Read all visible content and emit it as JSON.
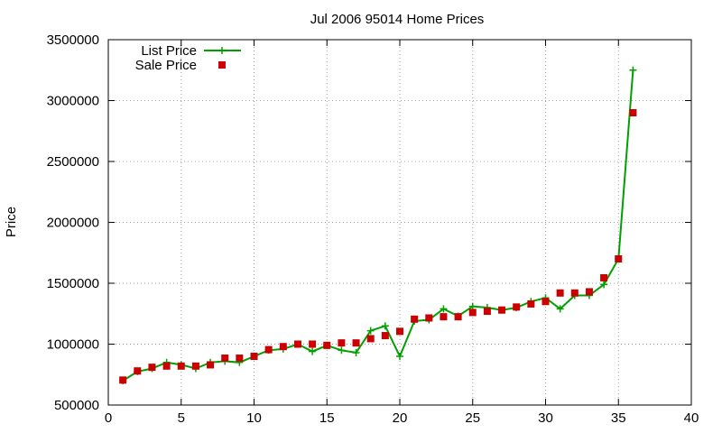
{
  "chart_data": {
    "type": "line",
    "title": "Jul 2006 95014 Home Prices",
    "xlabel": "",
    "ylabel": "Price",
    "xlim": [
      0,
      40
    ],
    "ylim": [
      500000,
      3500000
    ],
    "x_ticks": [
      0,
      5,
      10,
      15,
      20,
      25,
      30,
      35,
      40
    ],
    "y_ticks": [
      500000,
      1000000,
      1500000,
      2000000,
      2500000,
      3000000,
      3500000
    ],
    "x_tick_labels": [
      "0",
      "5",
      "10",
      "15",
      "20",
      "25",
      "30",
      "35",
      "40"
    ],
    "y_tick_labels": [
      "500000",
      "1000000",
      "1500000",
      "2000000",
      "2500000",
      "3000000",
      "3500000"
    ],
    "grid": true,
    "legend_position": "top-left",
    "series": [
      {
        "name": "List Price",
        "style": "line-plus",
        "color": "#00a000",
        "x": [
          1,
          2,
          3,
          4,
          5,
          6,
          7,
          8,
          9,
          10,
          11,
          12,
          13,
          14,
          15,
          16,
          17,
          18,
          19,
          20,
          21,
          22,
          23,
          24,
          25,
          26,
          27,
          28,
          29,
          30,
          31,
          32,
          33,
          34,
          35,
          36
        ],
        "y": [
          700000,
          775000,
          800000,
          850000,
          830000,
          800000,
          850000,
          860000,
          850000,
          900000,
          950000,
          960000,
          1000000,
          940000,
          990000,
          950000,
          930000,
          1110000,
          1150000,
          900000,
          1190000,
          1200000,
          1290000,
          1230000,
          1310000,
          1300000,
          1280000,
          1300000,
          1350000,
          1380000,
          1290000,
          1400000,
          1400000,
          1490000,
          1700000,
          3250000
        ]
      },
      {
        "name": "Sale Price",
        "style": "square-points",
        "color": "#cc0000",
        "x": [
          1,
          2,
          3,
          4,
          5,
          6,
          7,
          8,
          9,
          10,
          11,
          12,
          13,
          14,
          15,
          16,
          17,
          18,
          19,
          20,
          21,
          22,
          23,
          24,
          25,
          26,
          27,
          28,
          29,
          30,
          31,
          32,
          33,
          34,
          35,
          36
        ],
        "y": [
          705000,
          780000,
          810000,
          820000,
          820000,
          820000,
          830000,
          885000,
          885000,
          900000,
          955000,
          980000,
          1000000,
          1000000,
          990000,
          1010000,
          1010000,
          1045000,
          1070000,
          1105000,
          1205000,
          1215000,
          1225000,
          1225000,
          1260000,
          1270000,
          1280000,
          1305000,
          1330000,
          1350000,
          1420000,
          1420000,
          1430000,
          1545000,
          1700000,
          2900000
        ]
      }
    ]
  }
}
